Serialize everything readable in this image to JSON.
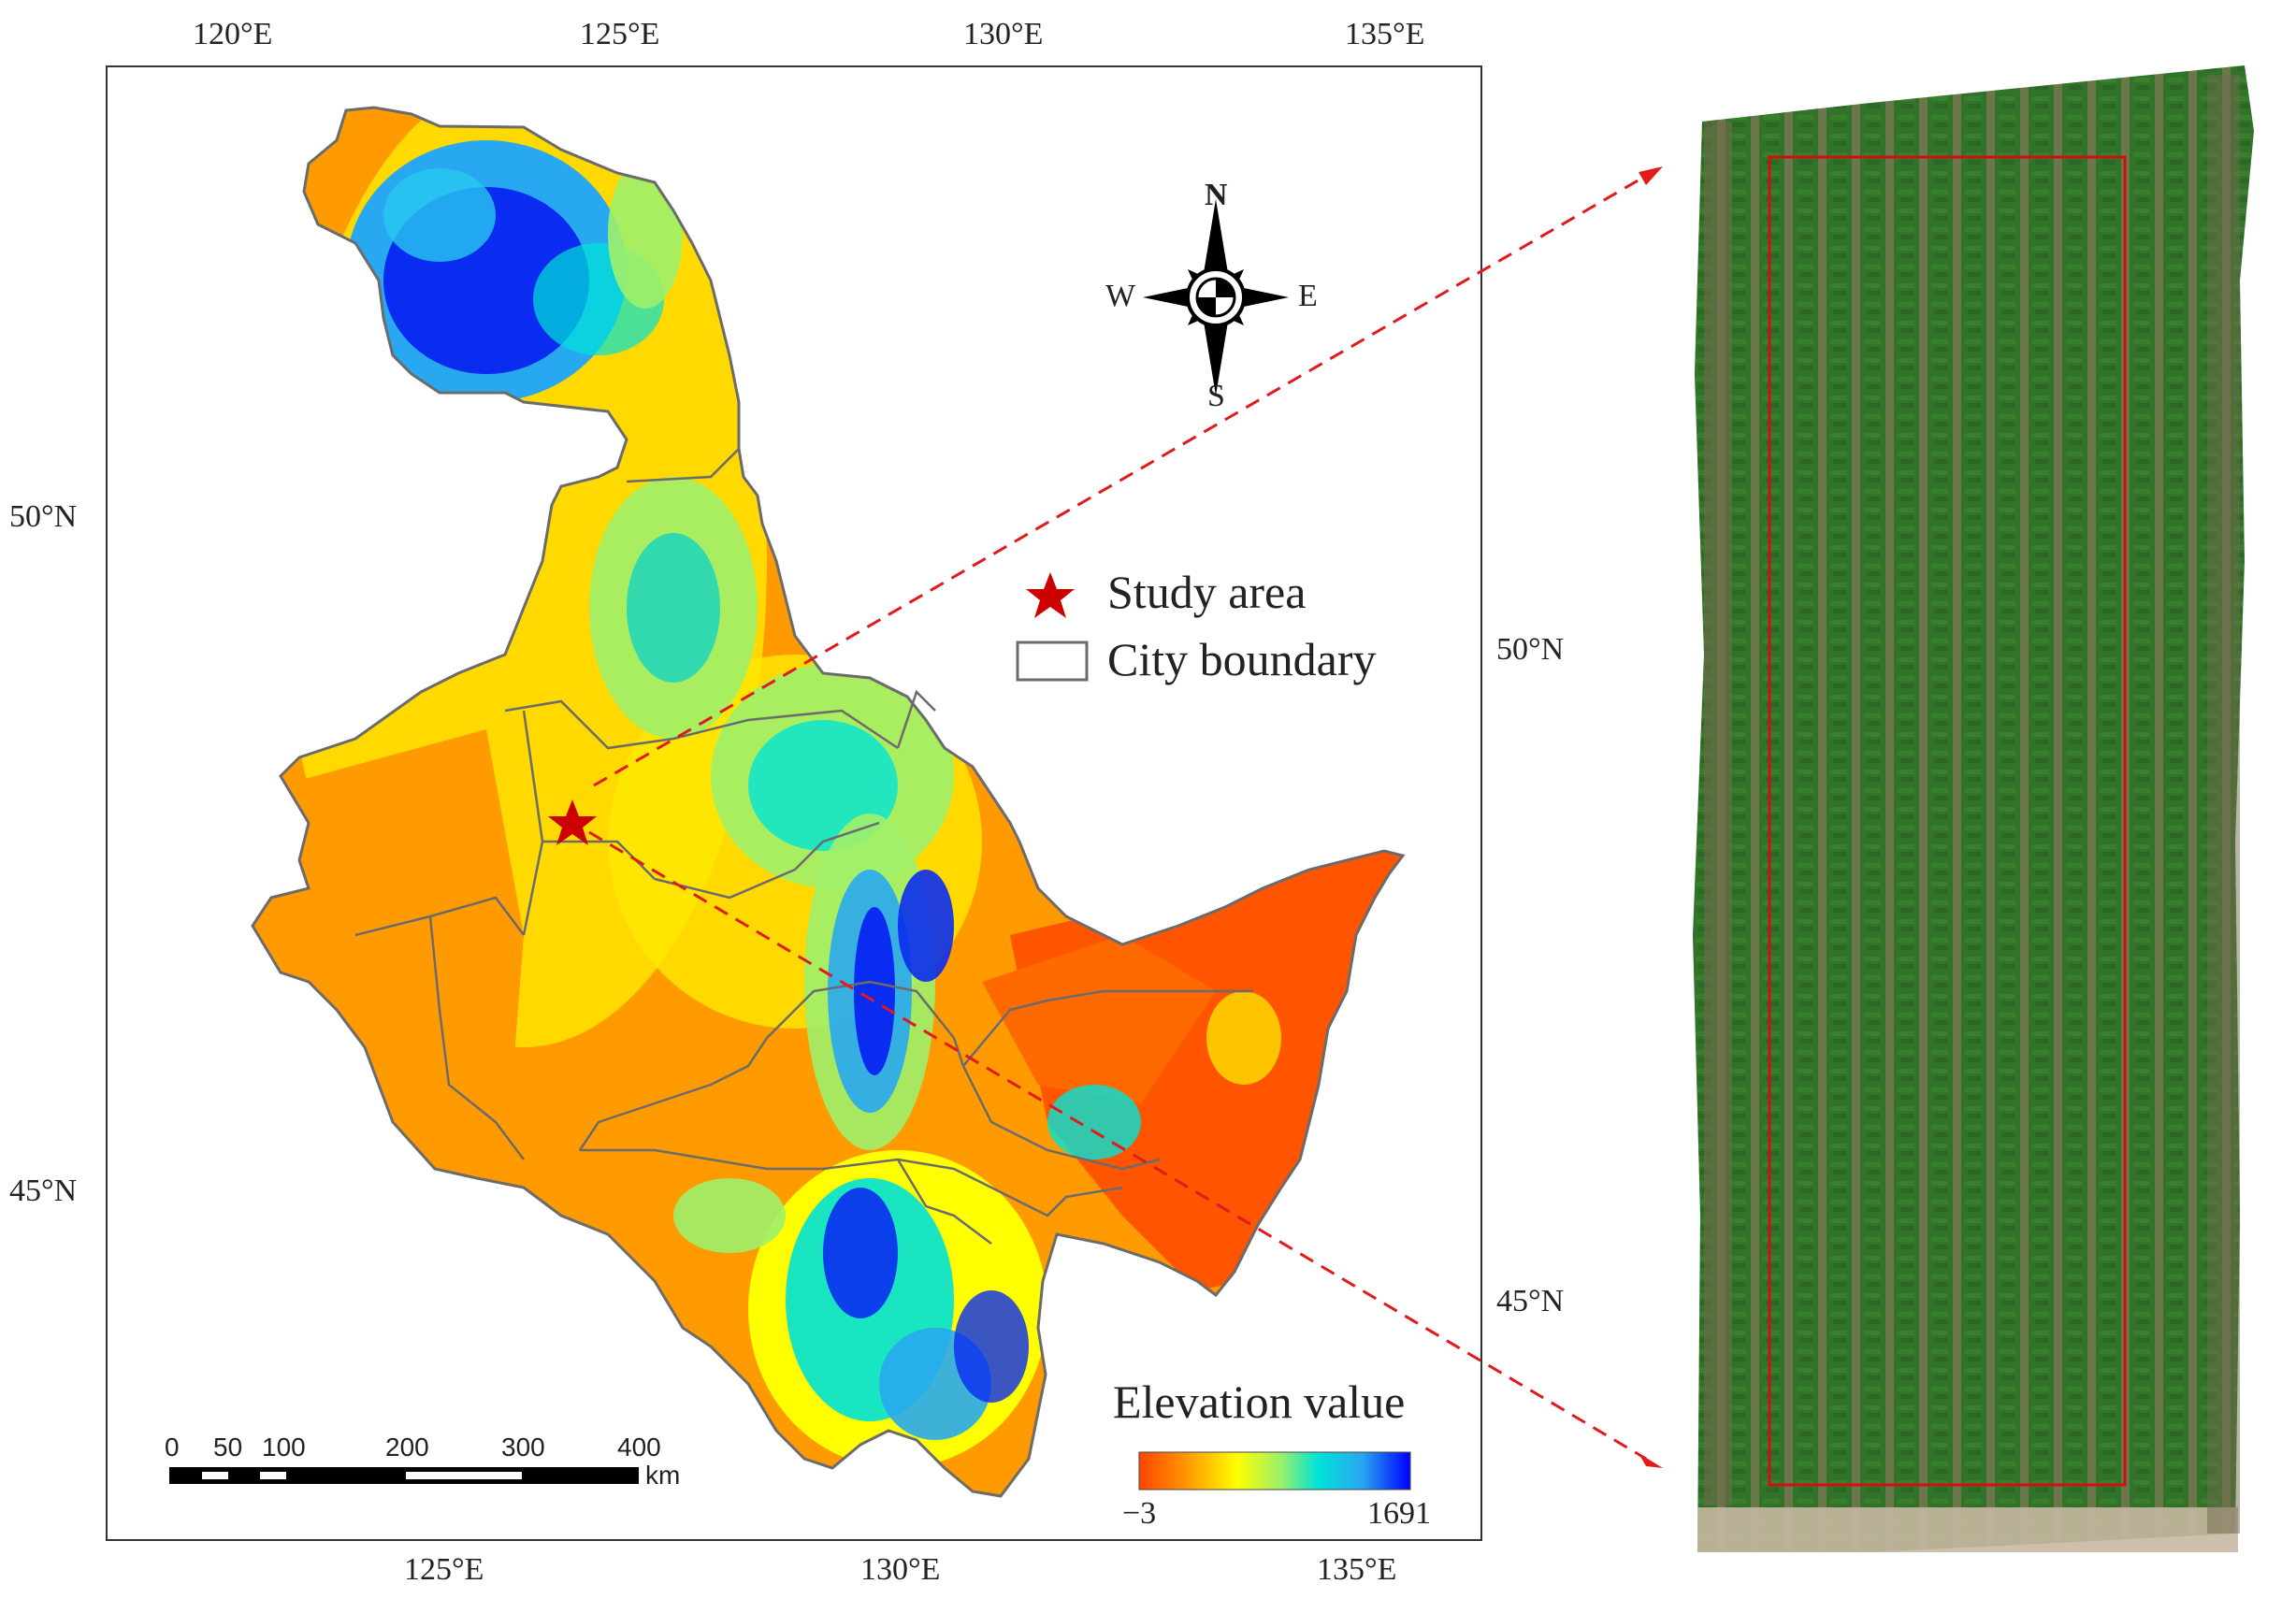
{
  "map": {
    "top_lon_ticks": [
      "120°E",
      "125°E",
      "130°E",
      "135°E"
    ],
    "bottom_lon_ticks": [
      "125°E",
      "130°E",
      "135°E"
    ],
    "left_lat_ticks": [
      "50°N",
      "45°N"
    ],
    "right_lat_ticks": [
      "50°N",
      "45°N"
    ],
    "compass": {
      "n": "N",
      "s": "S",
      "e": "E",
      "w": "W"
    },
    "legend": {
      "study_area": "Study area",
      "city_boundary": "City boundary"
    },
    "elevation": {
      "title": "Elevation value",
      "min": "−3",
      "max": "1691",
      "colors": [
        "#ff4500",
        "#ff9a00",
        "#ffff00",
        "#9ff06a",
        "#00e3d6",
        "#28a8f0",
        "#0000ff"
      ]
    },
    "scale_bar": {
      "labels": [
        "0",
        "50",
        "100",
        "200",
        "300",
        "400"
      ],
      "unit": "km"
    },
    "colors": {
      "star": "#cc0000",
      "arrow": "#e31a1c",
      "boundary": "#6b6b6b",
      "plot_outline": "#d01010",
      "field": "#2c6a26"
    }
  }
}
